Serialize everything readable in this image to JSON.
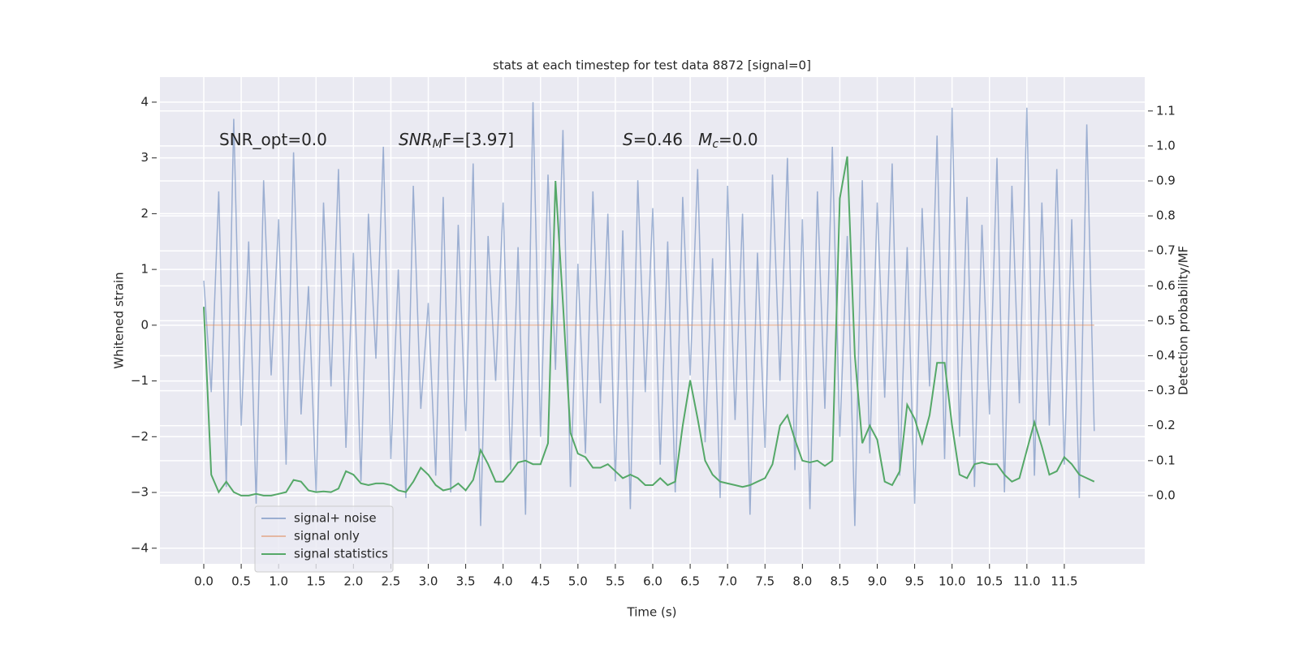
{
  "chart_data": {
    "type": "line",
    "title": "stats at each timestep for test data 8872 [signal=0]",
    "xlabel": "Time (s)",
    "ylabel": "Whitened strain",
    "y2label": "Detection probability/MF",
    "annotations": [
      {
        "parts": [
          {
            "text": "SNR_opt=0.0"
          }
        ]
      },
      {
        "parts": [
          {
            "text": "SNR",
            "italic": true
          },
          {
            "text": "M",
            "italic": true,
            "sub": true
          },
          {
            "text": "F=[3.97]"
          }
        ]
      },
      {
        "parts": [
          {
            "text": "S",
            "italic": true
          },
          {
            "text": "=0.46   "
          },
          {
            "text": "M",
            "italic": true
          },
          {
            "text": "c",
            "italic": true,
            "sub": true
          },
          {
            "text": "=0.0"
          }
        ]
      }
    ],
    "x": [
      0.0,
      0.1,
      0.2,
      0.3,
      0.4,
      0.5,
      0.6,
      0.7,
      0.8,
      0.9,
      1.0,
      1.1,
      1.2,
      1.3,
      1.4,
      1.5,
      1.6,
      1.7,
      1.8,
      1.9,
      2.0,
      2.1,
      2.2,
      2.3,
      2.4,
      2.5,
      2.6,
      2.7,
      2.8,
      2.9,
      3.0,
      3.1,
      3.2,
      3.3,
      3.4,
      3.5,
      3.6,
      3.7,
      3.8,
      3.9,
      4.0,
      4.1,
      4.2,
      4.3,
      4.4,
      4.5,
      4.6,
      4.7,
      4.8,
      4.9,
      5.0,
      5.1,
      5.2,
      5.3,
      5.4,
      5.5,
      5.6,
      5.7,
      5.8,
      5.9,
      6.0,
      6.1,
      6.2,
      6.3,
      6.4,
      6.5,
      6.6,
      6.7,
      6.8,
      6.9,
      7.0,
      7.1,
      7.2,
      7.3,
      7.4,
      7.5,
      7.6,
      7.7,
      7.8,
      7.9,
      8.0,
      8.1,
      8.2,
      8.3,
      8.4,
      8.5,
      8.6,
      8.7,
      8.8,
      8.9,
      9.0,
      9.1,
      9.2,
      9.3,
      9.4,
      9.5,
      9.6,
      9.7,
      9.8,
      9.9,
      10.0,
      10.1,
      10.2,
      10.3,
      10.4,
      10.5,
      10.6,
      10.7,
      10.8,
      10.9,
      11.0,
      11.1,
      11.2,
      11.3,
      11.4,
      11.5,
      11.6,
      11.7,
      11.8,
      11.9
    ],
    "series": [
      {
        "name": "signal+ noise",
        "color": "#4c72b0",
        "opacity": 0.5,
        "axis": "y",
        "values": [
          0.8,
          -1.2,
          2.4,
          -2.9,
          3.7,
          -1.8,
          1.5,
          -3.2,
          2.6,
          -0.9,
          1.9,
          -2.5,
          3.1,
          -1.6,
          0.7,
          -3.0,
          2.2,
          -1.1,
          2.8,
          -2.2,
          1.3,
          -2.8,
          2.0,
          -0.6,
          3.2,
          -2.4,
          1.0,
          -3.1,
          2.5,
          -1.5,
          0.4,
          -2.7,
          2.3,
          -3.0,
          1.8,
          -1.9,
          2.9,
          -3.6,
          1.6,
          -1.0,
          2.2,
          -2.6,
          1.4,
          -3.4,
          4.0,
          -2.0,
          2.7,
          -0.8,
          3.5,
          -2.9,
          1.1,
          -2.3,
          2.4,
          -1.4,
          2.0,
          -2.8,
          1.7,
          -3.3,
          2.6,
          -1.2,
          2.1,
          -2.5,
          1.5,
          -3.0,
          2.3,
          -0.9,
          2.8,
          -2.1,
          1.2,
          -3.1,
          2.5,
          -1.7,
          2.0,
          -3.4,
          1.3,
          -2.2,
          2.7,
          -1.0,
          3.0,
          -2.6,
          1.9,
          -3.3,
          2.4,
          -1.5,
          3.2,
          -2.0,
          1.6,
          -3.6,
          2.6,
          -2.3,
          2.2,
          -1.3,
          2.9,
          -2.7,
          1.4,
          -3.2,
          2.1,
          -1.1,
          3.4,
          -2.4,
          3.9,
          -2.0,
          2.3,
          -2.9,
          1.8,
          -1.6,
          3.0,
          -3.0,
          2.5,
          -1.4,
          3.9,
          -2.7,
          2.2,
          -1.8,
          2.8,
          -2.5,
          1.9,
          -3.1,
          3.6,
          -1.9
        ]
      },
      {
        "name": "signal only",
        "color": "#dd8452",
        "opacity": 0.5,
        "axis": "y",
        "values": [
          0,
          0,
          0,
          0,
          0,
          0,
          0,
          0,
          0,
          0,
          0,
          0,
          0,
          0,
          0,
          0,
          0,
          0,
          0,
          0,
          0,
          0,
          0,
          0,
          0,
          0,
          0,
          0,
          0,
          0,
          0,
          0,
          0,
          0,
          0,
          0,
          0,
          0,
          0,
          0,
          0,
          0,
          0,
          0,
          0,
          0,
          0,
          0,
          0,
          0,
          0,
          0,
          0,
          0,
          0,
          0,
          0,
          0,
          0,
          0,
          0,
          0,
          0,
          0,
          0,
          0,
          0,
          0,
          0,
          0,
          0,
          0,
          0,
          0,
          0,
          0,
          0,
          0,
          0,
          0,
          0,
          0,
          0,
          0,
          0,
          0,
          0,
          0,
          0,
          0,
          0,
          0,
          0,
          0,
          0,
          0,
          0,
          0,
          0,
          0,
          0,
          0,
          0,
          0,
          0,
          0,
          0,
          0,
          0,
          0,
          0,
          0,
          0,
          0,
          0,
          0,
          0,
          0,
          0,
          0
        ]
      },
      {
        "name": "signal statistics",
        "color": "#55a868",
        "opacity": 1,
        "axis": "y2",
        "values": [
          0.54,
          0.06,
          0.01,
          0.04,
          0.01,
          0.0,
          0.0,
          0.005,
          0.0,
          0.0,
          0.005,
          0.01,
          0.045,
          0.04,
          0.015,
          0.01,
          0.012,
          0.01,
          0.02,
          0.07,
          0.06,
          0.035,
          0.03,
          0.035,
          0.035,
          0.03,
          0.015,
          0.01,
          0.04,
          0.08,
          0.06,
          0.03,
          0.015,
          0.02,
          0.035,
          0.015,
          0.045,
          0.13,
          0.09,
          0.04,
          0.04,
          0.065,
          0.095,
          0.1,
          0.09,
          0.09,
          0.15,
          0.9,
          0.55,
          0.18,
          0.12,
          0.11,
          0.08,
          0.08,
          0.09,
          0.07,
          0.05,
          0.06,
          0.05,
          0.03,
          0.03,
          0.05,
          0.03,
          0.04,
          0.2,
          0.33,
          0.22,
          0.1,
          0.06,
          0.04,
          0.035,
          0.03,
          0.025,
          0.03,
          0.04,
          0.05,
          0.09,
          0.2,
          0.23,
          0.16,
          0.1,
          0.095,
          0.1,
          0.085,
          0.1,
          0.85,
          0.97,
          0.4,
          0.15,
          0.2,
          0.16,
          0.04,
          0.03,
          0.07,
          0.26,
          0.22,
          0.15,
          0.23,
          0.38,
          0.38,
          0.2,
          0.06,
          0.05,
          0.09,
          0.095,
          0.09,
          0.09,
          0.06,
          0.04,
          0.05,
          0.13,
          0.21,
          0.14,
          0.06,
          0.07,
          0.11,
          0.09,
          0.06,
          0.05,
          0.04
        ]
      }
    ],
    "xlim": [
      -0.586,
      12.575
    ],
    "xticks": [
      {
        "value": 0,
        "label": "0.0"
      },
      0.5,
      {
        "value": 1,
        "label": "1.0"
      },
      1.5,
      {
        "value": 2,
        "label": "2.0"
      },
      2.5,
      {
        "value": 3,
        "label": "3.0"
      },
      3.5,
      {
        "value": 4,
        "label": "4.0"
      },
      4.5,
      {
        "value": 5,
        "label": "5.0"
      },
      5.5,
      {
        "value": 6,
        "label": "6.0"
      },
      6.5,
      {
        "value": 7,
        "label": "7.0"
      },
      7.5,
      {
        "value": 8,
        "label": "8.0"
      },
      8.5,
      {
        "value": 9,
        "label": "9.0"
      },
      9.5,
      {
        "value": 10,
        "label": "10.0"
      },
      10.5,
      {
        "value": 11,
        "label": "11.0"
      },
      11.5
    ],
    "ylim": [
      -4.28,
      4.45
    ],
    "yticks": [
      {
        "value": -4,
        "label": "−4"
      },
      {
        "value": -3,
        "label": "−3"
      },
      {
        "value": -2,
        "label": "−2"
      },
      {
        "value": -1,
        "label": "−1"
      },
      0,
      1,
      2,
      3,
      4
    ],
    "y2lim": [
      -0.195,
      1.197
    ],
    "y2ticks": [
      {
        "value": 0,
        "label": "0.0"
      },
      0.1,
      0.2,
      0.3,
      0.4,
      0.5,
      0.6,
      0.7,
      0.8,
      0.9,
      {
        "value": 1,
        "label": "1.0"
      },
      1.1
    ],
    "grid": true,
    "background": "#eaeaf2",
    "legend": "lower left"
  }
}
